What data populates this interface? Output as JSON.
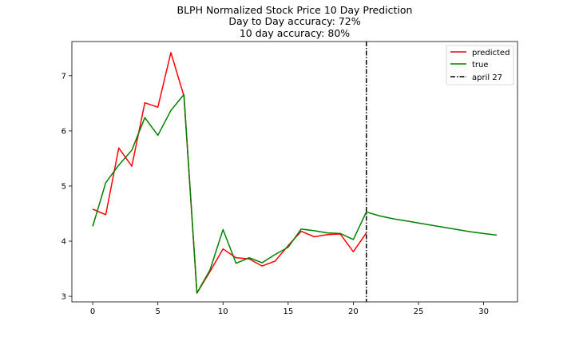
{
  "chart_data": {
    "type": "line",
    "title_lines": [
      "BLPH Normalized Stock Price 10 Day Prediction",
      "Day to Day accuracy: 72%",
      "10 day accuracy: 80%"
    ],
    "xlabel": "",
    "ylabel": "",
    "xlim": [
      -1.6,
      32.6
    ],
    "ylim": [
      2.9,
      7.62
    ],
    "xticks": [
      0,
      5,
      10,
      15,
      20,
      25,
      30
    ],
    "yticks": [
      3,
      4,
      5,
      6,
      7
    ],
    "grid": false,
    "legend_position": "top-right",
    "series": [
      {
        "name": "predicted",
        "color": "#ff0000",
        "x": [
          0,
          1,
          2,
          3,
          4,
          5,
          6,
          7,
          8,
          9,
          10,
          11,
          12,
          13,
          14,
          15,
          16,
          17,
          18,
          19,
          20,
          21
        ],
        "y": [
          4.58,
          4.48,
          5.69,
          5.36,
          6.51,
          6.43,
          7.42,
          6.63,
          3.06,
          3.45,
          3.86,
          3.7,
          3.68,
          3.55,
          3.64,
          3.92,
          4.18,
          4.08,
          4.12,
          4.13,
          3.81,
          4.15
        ]
      },
      {
        "name": "true",
        "color": "#008000",
        "x": [
          0,
          1,
          2,
          3,
          4,
          5,
          6,
          7,
          8,
          9,
          10,
          11,
          12,
          13,
          14,
          15,
          16,
          17,
          18,
          19,
          20,
          21,
          22,
          23,
          24,
          25,
          26,
          27,
          28,
          29,
          30,
          31
        ],
        "y": [
          4.27,
          5.06,
          5.38,
          5.65,
          6.24,
          5.92,
          6.37,
          6.66,
          3.06,
          3.48,
          4.21,
          3.6,
          3.7,
          3.61,
          3.76,
          3.89,
          4.22,
          4.19,
          4.15,
          4.14,
          4.03,
          4.53,
          4.46,
          4.41,
          4.37,
          4.33,
          4.29,
          4.25,
          4.21,
          4.17,
          4.14,
          4.11
        ]
      }
    ],
    "vline": {
      "name": "april 27",
      "x": 21,
      "color": "#000000",
      "style": "dashdot"
    }
  }
}
